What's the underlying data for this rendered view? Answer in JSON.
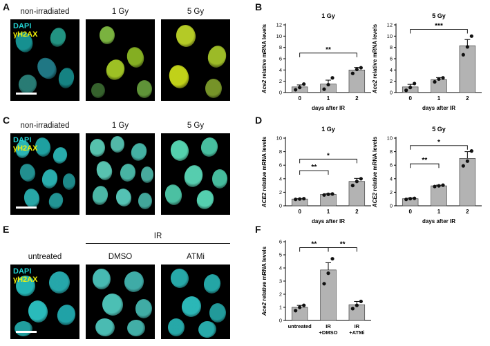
{
  "panels": {
    "A": {
      "letter": "A",
      "images": [
        "non-irradiated",
        "1 Gy",
        "5 Gy"
      ],
      "legend": {
        "dapi": "DAPI",
        "gh2ax": "γH2AX"
      }
    },
    "C": {
      "letter": "C",
      "images": [
        "non-irradiated",
        "1 Gy",
        "5 Gy"
      ],
      "legend": {
        "dapi": "DAPI",
        "gh2ax": "γH2AX"
      }
    },
    "E": {
      "letter": "E",
      "untreated": "untreated",
      "ir": "IR",
      "dmso": "DMSO",
      "atmi": "ATMi",
      "legend": {
        "dapi": "DAPI",
        "gh2ax": "γH2AX"
      }
    },
    "B": {
      "letter": "B"
    },
    "D": {
      "letter": "D"
    },
    "F": {
      "letter": "F"
    }
  },
  "colors": {
    "dapi": "#22d3d3",
    "gh2ax": "#f2f20a",
    "bar": "#b3b3b3"
  },
  "chart_data": [
    {
      "id": "B1",
      "type": "bar",
      "title": "1 Gy",
      "gene": "Ace2",
      "ylabel_suffix": " relative mRNA levels",
      "xlabel": "days after IR",
      "categories": [
        "0",
        "1",
        "2"
      ],
      "values": [
        1.0,
        1.5,
        4.0
      ],
      "errors": [
        0.35,
        0.7,
        0.45
      ],
      "points": [
        [
          0.5,
          0.9,
          1.5
        ],
        [
          0.6,
          1.4,
          2.6
        ],
        [
          3.4,
          4.1,
          4.4
        ]
      ],
      "ylim": [
        0,
        12
      ],
      "yticks": [
        0,
        2,
        4,
        6,
        8,
        10,
        12
      ],
      "sig": [
        {
          "from": 0,
          "to": 2,
          "label": "**"
        }
      ]
    },
    {
      "id": "B2",
      "type": "bar",
      "title": "5 Gy",
      "gene": "Ace2",
      "ylabel_suffix": " relative mRNA levels",
      "xlabel": "days after IR",
      "categories": [
        "0",
        "1",
        "2"
      ],
      "values": [
        1.0,
        2.3,
        8.3
      ],
      "errors": [
        0.45,
        0.35,
        1.1
      ],
      "points": [
        [
          0.4,
          0.9,
          1.6
        ],
        [
          1.9,
          2.4,
          2.6
        ],
        [
          6.7,
          8.1,
          10.0
        ]
      ],
      "ylim": [
        0,
        12
      ],
      "yticks": [
        0,
        2,
        4,
        6,
        8,
        10,
        12
      ],
      "sig": [
        {
          "from": 0,
          "to": 2,
          "label": "***"
        }
      ]
    },
    {
      "id": "D1",
      "type": "bar",
      "title": "1 Gy",
      "gene": "ACE2",
      "ylabel_suffix": " relative mRNA levels",
      "xlabel": "days after IR",
      "categories": [
        "0",
        "1",
        "2"
      ],
      "values": [
        1.0,
        1.7,
        3.6
      ],
      "errors": [
        0.05,
        0.1,
        0.45
      ],
      "points": [
        [
          0.95,
          1.0,
          1.05
        ],
        [
          1.6,
          1.7,
          1.75
        ],
        [
          3.0,
          3.6,
          4.0
        ]
      ],
      "ylim": [
        0,
        10
      ],
      "yticks": [
        0,
        2,
        4,
        6,
        8,
        10
      ],
      "sig": [
        {
          "from": 0,
          "to": 1,
          "label": "**"
        },
        {
          "from": 0,
          "to": 2,
          "label": "*"
        }
      ]
    },
    {
      "id": "D2",
      "type": "bar",
      "title": "5 Gy",
      "gene": "ACE2",
      "ylabel_suffix": " relative mRNA levels",
      "xlabel": "days after IR",
      "categories": [
        "0",
        "1",
        "2"
      ],
      "values": [
        1.05,
        2.95,
        7.0
      ],
      "errors": [
        0.1,
        0.1,
        1.0
      ],
      "points": [
        [
          0.95,
          1.05,
          1.1
        ],
        [
          2.85,
          2.95,
          3.05
        ],
        [
          5.9,
          6.6,
          8.1
        ]
      ],
      "ylim": [
        0,
        10
      ],
      "yticks": [
        0,
        2,
        4,
        6,
        8,
        10
      ],
      "sig": [
        {
          "from": 0,
          "to": 1,
          "label": "**"
        },
        {
          "from": 0,
          "to": 2,
          "label": "*"
        }
      ]
    },
    {
      "id": "F",
      "type": "bar",
      "title": "",
      "gene": "Ace2",
      "ylabel_suffix": " relative mRNA levels",
      "xlabel": "",
      "categories": [
        "untreated",
        "IR\n+DMSO",
        "IR\n+ATMi"
      ],
      "values": [
        1.0,
        3.85,
        1.2
      ],
      "errors": [
        0.15,
        0.55,
        0.25
      ],
      "points": [
        [
          0.75,
          1.0,
          1.15
        ],
        [
          2.8,
          3.6,
          4.7
        ],
        [
          0.9,
          1.15,
          1.45
        ]
      ],
      "ylim": [
        0,
        6
      ],
      "yticks": [
        0,
        1,
        2,
        3,
        4,
        5,
        6
      ],
      "sig": [
        {
          "from": 0,
          "to": 1,
          "label": "**"
        },
        {
          "from": 1,
          "to": 2,
          "label": "**"
        }
      ]
    }
  ]
}
